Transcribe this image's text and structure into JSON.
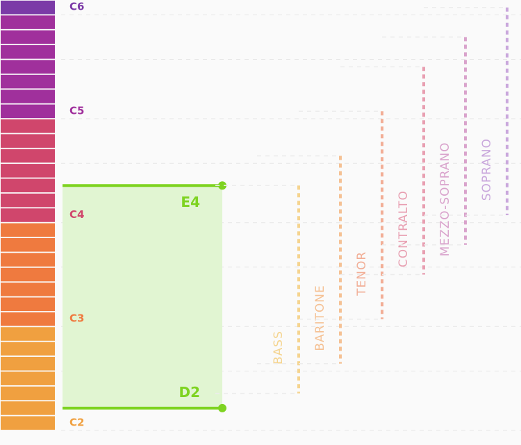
{
  "chart_data": {
    "type": "range",
    "keyboard": {
      "low": "C2",
      "high": "C6"
    },
    "octave_labels": [
      {
        "note": "C2",
        "color": "#f0a040"
      },
      {
        "note": "C3",
        "color": "#ef7a3f"
      },
      {
        "note": "C4",
        "color": "#d0466c"
      },
      {
        "note": "C5",
        "color": "#a0309c"
      },
      {
        "note": "C6",
        "color": "#7b3aa7"
      }
    ],
    "selected_range": {
      "low": "D2",
      "high": "E4",
      "low_label": "D2",
      "high_label": "E4",
      "color": "#7ed321",
      "fill": "#e1f5d2"
    },
    "voice_ranges": [
      {
        "name": "BASS",
        "low": "E2",
        "high": "E4",
        "color": "#f5d48f"
      },
      {
        "name": "BARITONE",
        "low": "G2",
        "high": "G4",
        "color": "#f5c194"
      },
      {
        "name": "TENOR",
        "low": "C3",
        "high": "C5",
        "color": "#f2ae96"
      },
      {
        "name": "CONTRALTO",
        "low": "F3",
        "high": "F5",
        "color": "#e89fb1"
      },
      {
        "name": "MEZZO-SOPRANO",
        "low": "A3",
        "high": "A5",
        "color": "#d9a3cc"
      },
      {
        "name": "SOPRANO",
        "low": "C4",
        "high": "C6",
        "color": "#c9a7dc"
      }
    ]
  }
}
